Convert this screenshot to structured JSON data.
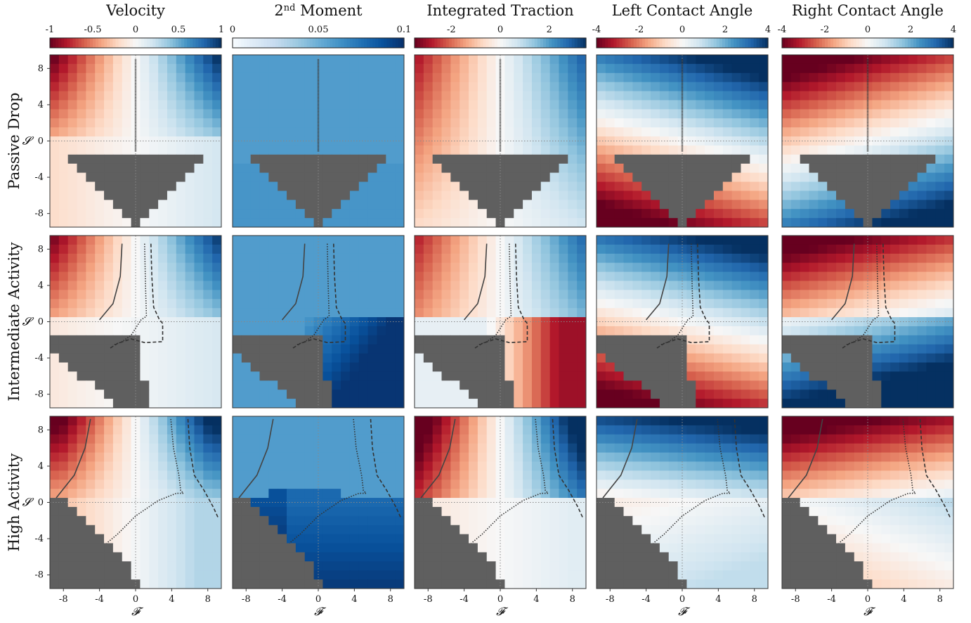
{
  "chart_data": {
    "type": "heatmap",
    "layout": "3x5 panel grid",
    "columns": [
      {
        "title": "Velocity",
        "colormap": "RdBu",
        "vmin": -1,
        "vmax": 1,
        "colorbar_ticks": [
          "-1",
          "-0.5",
          "0",
          "0.5",
          "1"
        ],
        "colorbar_tick_values": [
          -1,
          -0.5,
          0,
          0.5,
          1
        ]
      },
      {
        "title": "2nd Moment",
        "title_base": "2",
        "title_sup": "nd",
        "title_rest": " Moment",
        "colormap": "Blues",
        "vmin": 0,
        "vmax": 0.1,
        "colorbar_ticks": [
          "0",
          "0.05",
          "0.1"
        ],
        "colorbar_tick_values": [
          0,
          0.05,
          0.1
        ]
      },
      {
        "title": "Integrated Traction",
        "colormap": "RdBu",
        "vmin": -3.5,
        "vmax": 3.5,
        "colorbar_ticks": [
          "-2",
          "0",
          "2"
        ],
        "colorbar_tick_values": [
          -2,
          0,
          2
        ]
      },
      {
        "title": "Left Contact Angle",
        "colormap": "RdBu",
        "vmin": -4,
        "vmax": 4,
        "colorbar_ticks": [
          "-4",
          "-2",
          "0",
          "2",
          "4"
        ],
        "colorbar_tick_values": [
          -4,
          -2,
          0,
          2,
          4
        ]
      },
      {
        "title": "Right Contact Angle",
        "colormap": "RdBu",
        "vmin": -4,
        "vmax": 4,
        "colorbar_ticks": [
          "-4",
          "-2",
          "0",
          "2",
          "4"
        ],
        "colorbar_tick_values": [
          -4,
          -2,
          0,
          2,
          4
        ]
      }
    ],
    "rows": [
      {
        "label": "Passive Drop"
      },
      {
        "label": "Intermediate Activity"
      },
      {
        "label": "High Activity"
      }
    ],
    "x_axis": {
      "label": "𝓕",
      "range": [
        -9.5,
        9.5
      ],
      "ticks": [
        -8,
        -4,
        0,
        4,
        8
      ],
      "tick_labels": [
        "-8",
        "-4",
        "0",
        "4",
        "8"
      ]
    },
    "y_axis": {
      "label": "𝓢",
      "range": [
        -9.5,
        9.5
      ],
      "ticks": [
        8,
        4,
        0,
        -4,
        -8
      ],
      "tick_labels": [
        "8",
        "4",
        "0",
        "-4",
        "-8"
      ]
    },
    "grid_resolution": 19,
    "masked_region_color": "#5f5f5f",
    "colors": {
      "red_end": "#67001f",
      "blue_end": "#053061",
      "white": "#f7f7f7",
      "mask": "#5f5f5f"
    }
  }
}
